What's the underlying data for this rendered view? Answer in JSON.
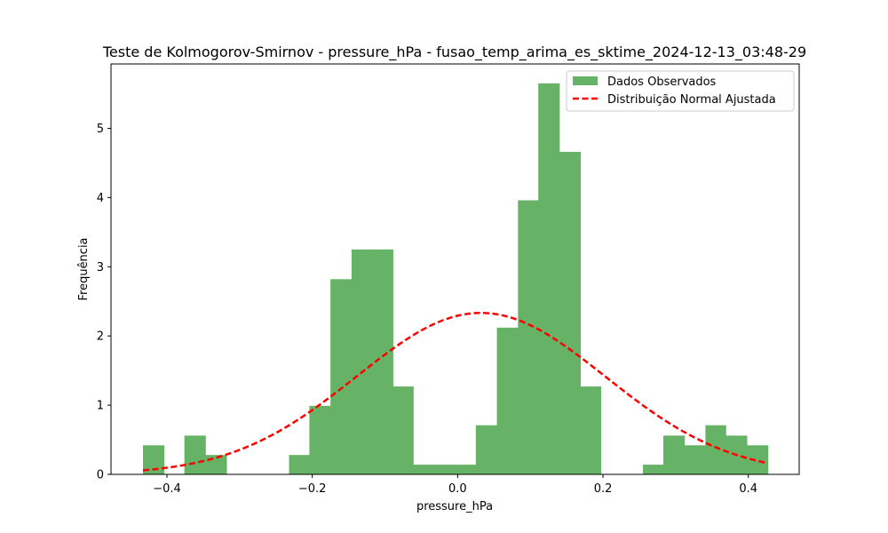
{
  "chart_data": {
    "type": "bar",
    "title": "Teste de Kolmogorov-Smirnov - pressure_hPa - fusao_temp_arima_es_sktime_2024-12-13_03:48-29",
    "xlabel": "pressure_hPa",
    "ylabel": "Frequência",
    "xlim": [
      -0.477,
      0.47
    ],
    "ylim": [
      0,
      5.93
    ],
    "xticks": [
      -0.4,
      -0.2,
      0.0,
      0.2,
      0.4
    ],
    "xtick_labels": [
      "−0.4",
      "−0.2",
      "0.0",
      "0.2",
      "0.4"
    ],
    "yticks": [
      0,
      1,
      2,
      3,
      4,
      5
    ],
    "ytick_labels": [
      "0",
      "1",
      "2",
      "3",
      "4",
      "5"
    ],
    "grid": false,
    "legend_position": "top-right",
    "bin_edges": [
      -0.433,
      -0.404,
      -0.376,
      -0.347,
      -0.318,
      -0.29,
      -0.261,
      -0.232,
      -0.204,
      -0.175,
      -0.146,
      -0.118,
      -0.089,
      -0.061,
      -0.032,
      -0.003,
      0.025,
      0.054,
      0.083,
      0.111,
      0.14,
      0.169,
      0.197,
      0.226,
      0.255,
      0.283,
      0.312,
      0.341,
      0.369,
      0.398,
      0.427
    ],
    "histogram_values": [
      0.42,
      0,
      0.56,
      0.28,
      0,
      0,
      0,
      0.28,
      0.99,
      2.82,
      3.25,
      3.25,
      1.27,
      0.14,
      0.14,
      0.14,
      0.71,
      2.12,
      3.96,
      5.65,
      4.66,
      1.27,
      0,
      0,
      0.14,
      0.56,
      0.42,
      0.71,
      0.56,
      0.42
    ],
    "histogram_series_name": "Dados Observados",
    "histogram_color": "#66b266",
    "normal_fit": {
      "name": "Distribuição Normal Ajustada",
      "color": "#ff0000",
      "mean": 0.032,
      "std": 0.171,
      "x_start": -0.433,
      "x_end": 0.427
    }
  }
}
